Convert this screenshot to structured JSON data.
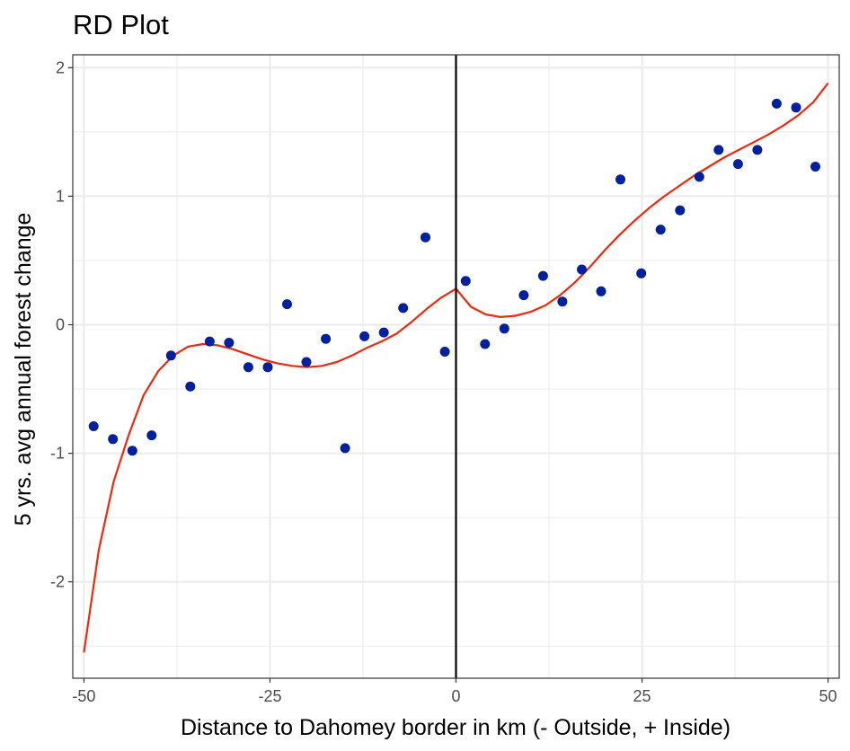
{
  "chart_data": {
    "type": "scatter",
    "title": "RD Plot",
    "xlabel": "Distance to Dahomey border in km (- Outside, + Inside)",
    "ylabel": "5 yrs. avg annual forest change",
    "xlim": [
      -51.5,
      51.5
    ],
    "ylim": [
      -2.75,
      2.1
    ],
    "x_ticks": [
      -50,
      -25,
      0,
      25,
      50
    ],
    "x_tick_labels": [
      "-50",
      "-25",
      "0",
      "25",
      "50"
    ],
    "y_ticks": [
      -2,
      -1,
      0,
      1,
      2
    ],
    "y_tick_labels": [
      "-2",
      "-1",
      "0",
      "1",
      "2"
    ],
    "grid": true,
    "cutoff": 0,
    "colors": {
      "points": "#00209c",
      "fit": "#f0280e",
      "cutoff": "#000000",
      "grid": "#ebebeb",
      "panel_border": "#333333"
    },
    "points": [
      {
        "x": -48.7,
        "y": -0.79
      },
      {
        "x": -46.1,
        "y": -0.89
      },
      {
        "x": -43.5,
        "y": -0.98
      },
      {
        "x": -40.9,
        "y": -0.86
      },
      {
        "x": -38.3,
        "y": -0.24
      },
      {
        "x": -35.7,
        "y": -0.48
      },
      {
        "x": -33.1,
        "y": -0.13
      },
      {
        "x": -30.5,
        "y": -0.14
      },
      {
        "x": -27.9,
        "y": -0.33
      },
      {
        "x": -25.3,
        "y": -0.33
      },
      {
        "x": -22.7,
        "y": 0.16
      },
      {
        "x": -20.1,
        "y": -0.29
      },
      {
        "x": -17.5,
        "y": -0.11
      },
      {
        "x": -14.9,
        "y": -0.96
      },
      {
        "x": -12.3,
        "y": -0.09
      },
      {
        "x": -9.7,
        "y": -0.06
      },
      {
        "x": -7.1,
        "y": 0.13
      },
      {
        "x": -4.1,
        "y": 0.68
      },
      {
        "x": -1.5,
        "y": -0.21
      },
      {
        "x": 1.3,
        "y": 0.34
      },
      {
        "x": 3.9,
        "y": -0.15
      },
      {
        "x": 6.5,
        "y": -0.03
      },
      {
        "x": 9.1,
        "y": 0.23
      },
      {
        "x": 11.7,
        "y": 0.38
      },
      {
        "x": 14.3,
        "y": 0.18
      },
      {
        "x": 16.9,
        "y": 0.43
      },
      {
        "x": 19.5,
        "y": 0.26
      },
      {
        "x": 22.1,
        "y": 1.13
      },
      {
        "x": 24.9,
        "y": 0.4
      },
      {
        "x": 27.5,
        "y": 0.74
      },
      {
        "x": 30.1,
        "y": 0.89
      },
      {
        "x": 32.7,
        "y": 1.15
      },
      {
        "x": 35.3,
        "y": 1.36
      },
      {
        "x": 37.9,
        "y": 1.25
      },
      {
        "x": 40.5,
        "y": 1.36
      },
      {
        "x": 43.1,
        "y": 1.72
      },
      {
        "x": 45.7,
        "y": 1.69
      },
      {
        "x": 48.3,
        "y": 1.23
      }
    ],
    "fit_left": {
      "x": [
        -50,
        -48,
        -46,
        -44,
        -42,
        -40,
        -38,
        -36,
        -34,
        -32,
        -30,
        -28,
        -26,
        -24,
        -22,
        -20,
        -18,
        -16,
        -14,
        -12,
        -10,
        -8,
        -6,
        -4,
        -2,
        0
      ],
      "y": [
        -2.55,
        -1.75,
        -1.22,
        -0.86,
        -0.55,
        -0.36,
        -0.24,
        -0.17,
        -0.15,
        -0.16,
        -0.19,
        -0.23,
        -0.27,
        -0.3,
        -0.32,
        -0.33,
        -0.32,
        -0.29,
        -0.24,
        -0.18,
        -0.13,
        -0.07,
        0.02,
        0.12,
        0.21,
        0.28
      ]
    },
    "fit_right": {
      "x": [
        0,
        2,
        4,
        6,
        8,
        10,
        12,
        14,
        16,
        18,
        20,
        22,
        24,
        26,
        28,
        30,
        32,
        34,
        36,
        38,
        40,
        42,
        44,
        46,
        48,
        50
      ],
      "y": [
        0.28,
        0.14,
        0.08,
        0.06,
        0.07,
        0.1,
        0.15,
        0.23,
        0.33,
        0.45,
        0.58,
        0.7,
        0.81,
        0.91,
        1.0,
        1.08,
        1.16,
        1.23,
        1.3,
        1.36,
        1.42,
        1.48,
        1.55,
        1.63,
        1.73,
        1.88
      ]
    }
  }
}
